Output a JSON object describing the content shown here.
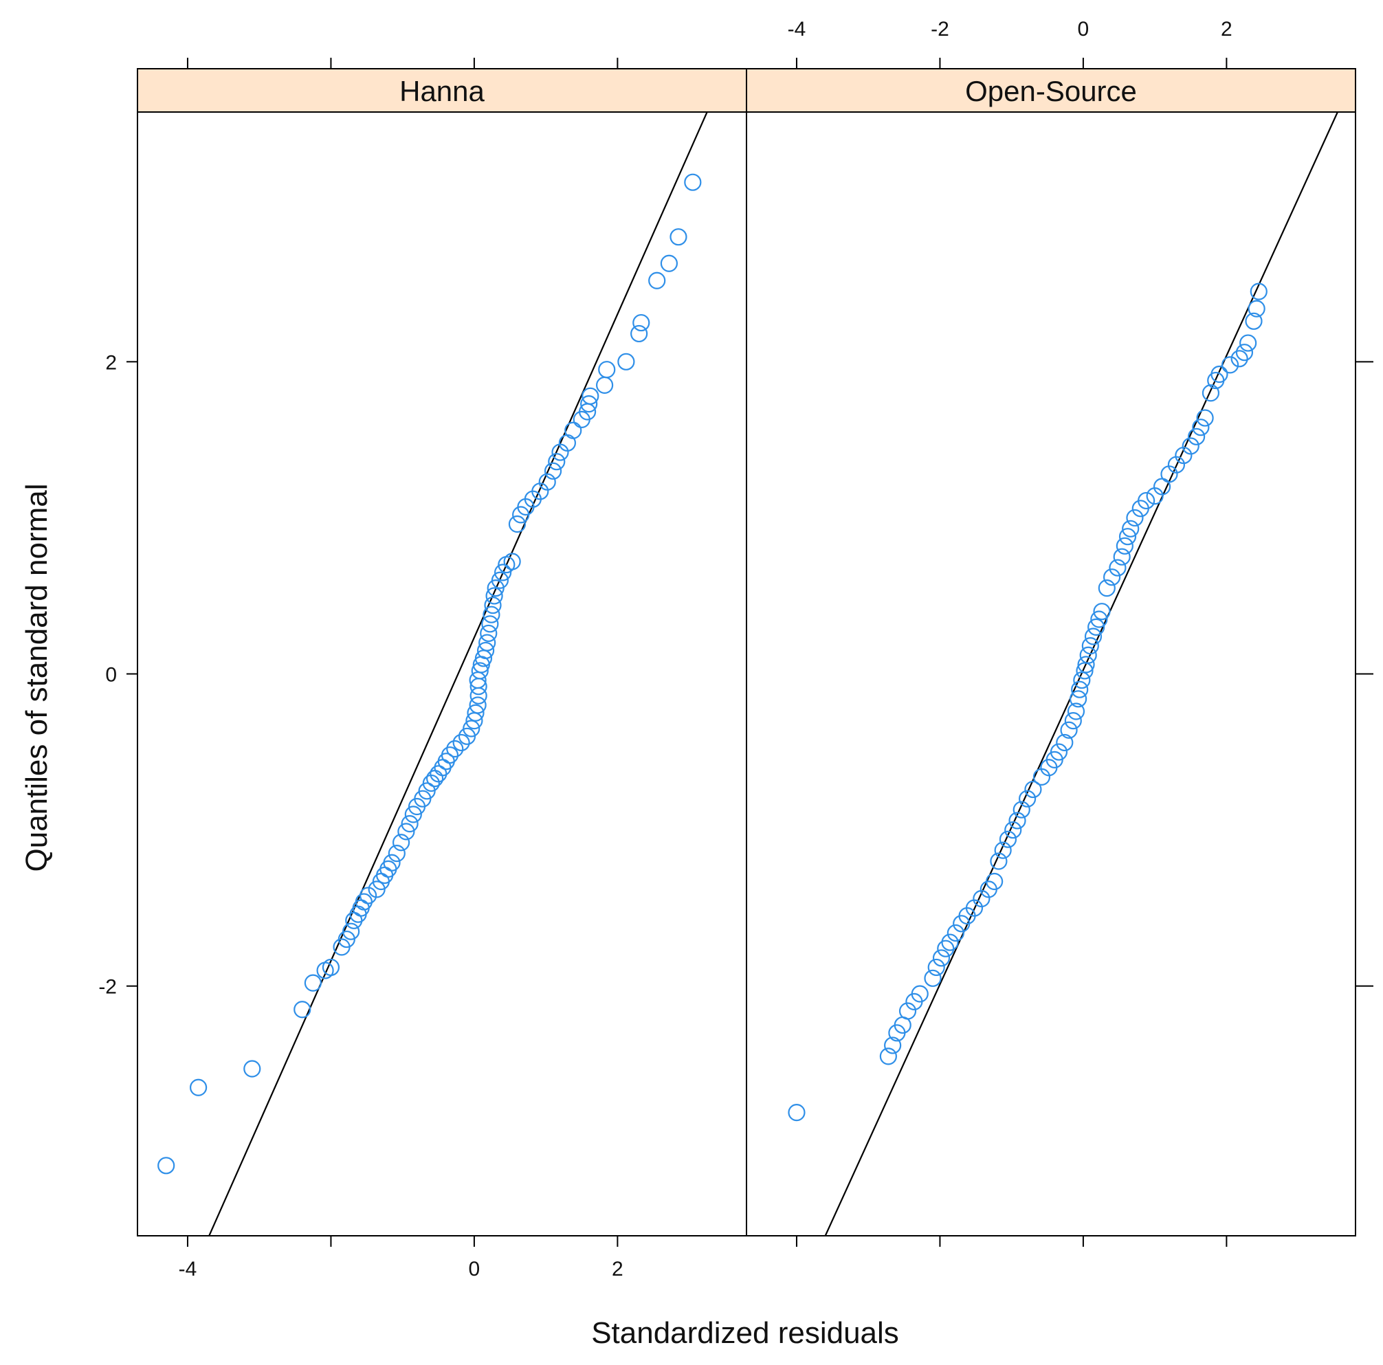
{
  "chart_data": {
    "type": "scatter",
    "xlabel": "Standardized residuals",
    "ylabel": "Quantiles of standard normal",
    "xlim": [
      -4.7,
      3.8
    ],
    "ylim": [
      -3.6,
      3.6
    ],
    "x_ticks_bottom_left": [
      -4,
      -2,
      0,
      2
    ],
    "x_tick_labels_bottom_left": [
      "-4",
      "",
      "0",
      "2"
    ],
    "x_ticks_top_right": [
      -4,
      -2,
      0,
      2
    ],
    "x_tick_labels_top_right": [
      "-4",
      "-2",
      "0",
      "2"
    ],
    "x_ticks_top_left": [
      -4,
      -2,
      0,
      2
    ],
    "x_ticks_bottom_right": [
      -4,
      -2,
      0,
      2
    ],
    "y_ticks": [
      -2,
      0,
      2
    ],
    "y_tick_labels": [
      "-2",
      "0",
      "2"
    ],
    "marker_color": "#2f8fe8",
    "strip_color": "#ffe5cc",
    "line_color": "#000000",
    "panels": [
      {
        "name": "Hanna",
        "reference_line": {
          "x_at_y_min": -3.7,
          "x_at_y_max": 3.25
        },
        "points": [
          [
            -4.3,
            -3.15
          ],
          [
            -3.85,
            -2.65
          ],
          [
            -3.1,
            -2.53
          ],
          [
            -2.4,
            -2.15
          ],
          [
            -2.25,
            -1.98
          ],
          [
            -2.08,
            -1.9
          ],
          [
            -2.0,
            -1.88
          ],
          [
            -1.85,
            -1.75
          ],
          [
            -1.78,
            -1.7
          ],
          [
            -1.72,
            -1.65
          ],
          [
            -1.68,
            -1.58
          ],
          [
            -1.62,
            -1.54
          ],
          [
            -1.58,
            -1.5
          ],
          [
            -1.54,
            -1.46
          ],
          [
            -1.48,
            -1.42
          ],
          [
            -1.36,
            -1.38
          ],
          [
            -1.3,
            -1.33
          ],
          [
            -1.25,
            -1.29
          ],
          [
            -1.2,
            -1.25
          ],
          [
            -1.15,
            -1.21
          ],
          [
            -1.08,
            -1.15
          ],
          [
            -1.02,
            -1.08
          ],
          [
            -0.95,
            -1.01
          ],
          [
            -0.9,
            -0.96
          ],
          [
            -0.85,
            -0.9
          ],
          [
            -0.8,
            -0.85
          ],
          [
            -0.72,
            -0.8
          ],
          [
            -0.66,
            -0.75
          ],
          [
            -0.6,
            -0.7
          ],
          [
            -0.55,
            -0.67
          ],
          [
            -0.5,
            -0.64
          ],
          [
            -0.44,
            -0.6
          ],
          [
            -0.39,
            -0.56
          ],
          [
            -0.34,
            -0.52
          ],
          [
            -0.27,
            -0.48
          ],
          [
            -0.18,
            -0.44
          ],
          [
            -0.1,
            -0.4
          ],
          [
            -0.04,
            -0.35
          ],
          [
            0.0,
            -0.3
          ],
          [
            0.02,
            -0.25
          ],
          [
            0.05,
            -0.2
          ],
          [
            0.06,
            -0.14
          ],
          [
            0.06,
            -0.08
          ],
          [
            0.05,
            -0.04
          ],
          [
            0.08,
            0.02
          ],
          [
            0.1,
            0.06
          ],
          [
            0.13,
            0.1
          ],
          [
            0.16,
            0.15
          ],
          [
            0.18,
            0.2
          ],
          [
            0.2,
            0.26
          ],
          [
            0.22,
            0.32
          ],
          [
            0.24,
            0.38
          ],
          [
            0.26,
            0.44
          ],
          [
            0.28,
            0.5
          ],
          [
            0.3,
            0.55
          ],
          [
            0.36,
            0.6
          ],
          [
            0.4,
            0.65
          ],
          [
            0.45,
            0.7
          ],
          [
            0.53,
            0.72
          ],
          [
            0.6,
            0.96
          ],
          [
            0.65,
            1.02
          ],
          [
            0.72,
            1.07
          ],
          [
            0.82,
            1.12
          ],
          [
            0.92,
            1.17
          ],
          [
            1.02,
            1.23
          ],
          [
            1.1,
            1.3
          ],
          [
            1.15,
            1.36
          ],
          [
            1.2,
            1.42
          ],
          [
            1.3,
            1.48
          ],
          [
            1.38,
            1.56
          ],
          [
            1.5,
            1.63
          ],
          [
            1.58,
            1.68
          ],
          [
            1.6,
            1.73
          ],
          [
            1.62,
            1.78
          ],
          [
            1.82,
            1.85
          ],
          [
            1.85,
            1.95
          ],
          [
            2.12,
            2.0
          ],
          [
            2.3,
            2.18
          ],
          [
            2.33,
            2.25
          ],
          [
            2.55,
            2.52
          ],
          [
            2.72,
            2.63
          ],
          [
            2.85,
            2.8
          ],
          [
            3.05,
            3.15
          ]
        ]
      },
      {
        "name": "Open-Source",
        "reference_line": {
          "x_at_y_min": -3.6,
          "x_at_y_max": 3.55
        },
        "points": [
          [
            -4.0,
            -2.81
          ],
          [
            -2.72,
            -2.45
          ],
          [
            -2.66,
            -2.38
          ],
          [
            -2.6,
            -2.3
          ],
          [
            -2.52,
            -2.25
          ],
          [
            -2.45,
            -2.16
          ],
          [
            -2.36,
            -2.1
          ],
          [
            -2.28,
            -2.05
          ],
          [
            -2.1,
            -1.95
          ],
          [
            -2.05,
            -1.88
          ],
          [
            -1.98,
            -1.82
          ],
          [
            -1.92,
            -1.76
          ],
          [
            -1.86,
            -1.72
          ],
          [
            -1.78,
            -1.66
          ],
          [
            -1.7,
            -1.6
          ],
          [
            -1.62,
            -1.55
          ],
          [
            -1.52,
            -1.5
          ],
          [
            -1.42,
            -1.44
          ],
          [
            -1.32,
            -1.38
          ],
          [
            -1.24,
            -1.33
          ],
          [
            -1.18,
            -1.2
          ],
          [
            -1.12,
            -1.13
          ],
          [
            -1.05,
            -1.06
          ],
          [
            -0.98,
            -1.0
          ],
          [
            -0.92,
            -0.94
          ],
          [
            -0.86,
            -0.87
          ],
          [
            -0.78,
            -0.8
          ],
          [
            -0.7,
            -0.74
          ],
          [
            -0.58,
            -0.66
          ],
          [
            -0.48,
            -0.6
          ],
          [
            -0.4,
            -0.55
          ],
          [
            -0.34,
            -0.5
          ],
          [
            -0.26,
            -0.44
          ],
          [
            -0.2,
            -0.36
          ],
          [
            -0.14,
            -0.3
          ],
          [
            -0.1,
            -0.24
          ],
          [
            -0.07,
            -0.16
          ],
          [
            -0.05,
            -0.1
          ],
          [
            -0.02,
            -0.04
          ],
          [
            0.02,
            0.02
          ],
          [
            0.04,
            0.06
          ],
          [
            0.07,
            0.12
          ],
          [
            0.1,
            0.18
          ],
          [
            0.14,
            0.24
          ],
          [
            0.18,
            0.3
          ],
          [
            0.22,
            0.35
          ],
          [
            0.26,
            0.4
          ],
          [
            0.33,
            0.55
          ],
          [
            0.4,
            0.62
          ],
          [
            0.48,
            0.68
          ],
          [
            0.54,
            0.75
          ],
          [
            0.58,
            0.82
          ],
          [
            0.62,
            0.88
          ],
          [
            0.66,
            0.93
          ],
          [
            0.72,
            1.0
          ],
          [
            0.8,
            1.06
          ],
          [
            0.88,
            1.11
          ],
          [
            1.0,
            1.14
          ],
          [
            1.1,
            1.2
          ],
          [
            1.2,
            1.28
          ],
          [
            1.3,
            1.34
          ],
          [
            1.4,
            1.4
          ],
          [
            1.5,
            1.46
          ],
          [
            1.58,
            1.52
          ],
          [
            1.64,
            1.58
          ],
          [
            1.7,
            1.64
          ],
          [
            1.78,
            1.8
          ],
          [
            1.85,
            1.88
          ],
          [
            1.9,
            1.92
          ],
          [
            2.05,
            1.98
          ],
          [
            2.18,
            2.02
          ],
          [
            2.25,
            2.06
          ],
          [
            2.3,
            2.12
          ],
          [
            2.38,
            2.26
          ],
          [
            2.42,
            2.34
          ],
          [
            2.45,
            2.45
          ]
        ]
      }
    ]
  }
}
